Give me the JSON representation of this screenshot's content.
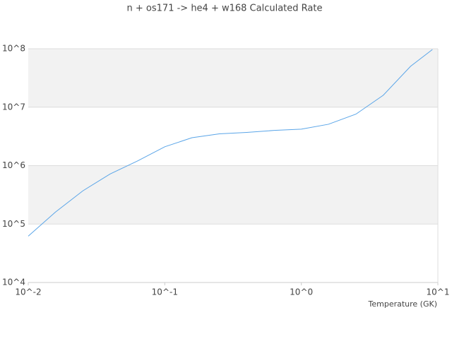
{
  "chart_data": {
    "type": "line",
    "title": "n + os171 -> he4 + w168 Calculated Rate",
    "x_label": "Temperature (GK)",
    "x": [
      0.01,
      0.0158,
      0.0251,
      0.0398,
      0.0631,
      0.1,
      0.158,
      0.251,
      0.398,
      0.631,
      1,
      1.58,
      2.51,
      3.98,
      6.31,
      9.12
    ],
    "series": [
      {
        "color": "#5aa5e8",
        "values": [
          62000,
          160000,
          370000,
          720000,
          1200000,
          2100000,
          3000000,
          3500000,
          3700000,
          4000000,
          4200000,
          5100000,
          7600000,
          16000000,
          50000000,
          97000000
        ]
      }
    ],
    "xlim": [
      0.01,
      10
    ],
    "xticks": [
      {
        "value": 0.01,
        "label": "10^-2"
      },
      {
        "value": 0.1,
        "label": "10^-1"
      },
      {
        "value": 1,
        "label": "10^0"
      },
      {
        "value": 10,
        "label": "10^1"
      }
    ],
    "ylim": [
      10000,
      100000000
    ],
    "yticks": [
      {
        "value": 10000,
        "label": "10^4"
      },
      {
        "value": 100000,
        "label": "10^5"
      },
      {
        "value": 1000000,
        "label": "10^6"
      },
      {
        "value": 10000000,
        "label": "10^7"
      },
      {
        "value": 100000000,
        "label": "10^8"
      }
    ],
    "xscale": "log",
    "yscale": "log",
    "grid": true,
    "band_color": "#f2f2f2"
  }
}
